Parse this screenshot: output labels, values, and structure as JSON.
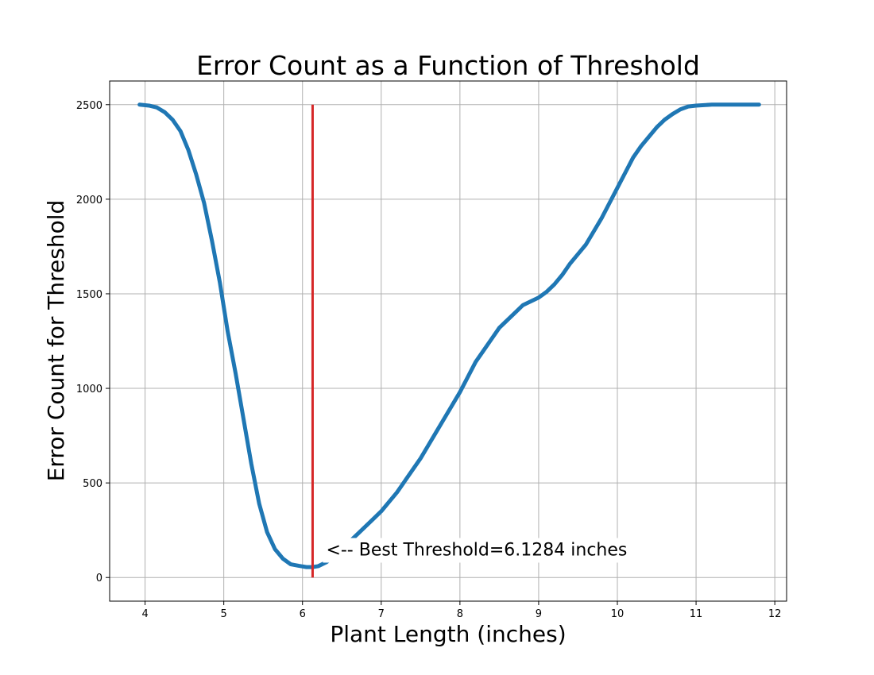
{
  "chart_data": {
    "type": "line",
    "title": "Error Count as a Function of Threshold",
    "xlabel": "Plant Length (inches)",
    "ylabel": "Error Count for Threshold",
    "xlim": [
      3.55,
      12.15
    ],
    "ylim": [
      -125,
      2625
    ],
    "grid": true,
    "x_ticks": [
      4,
      5,
      6,
      7,
      8,
      9,
      10,
      11,
      12
    ],
    "y_ticks": [
      0,
      500,
      1000,
      1500,
      2000,
      2500
    ],
    "series": [
      {
        "name": "Error Count",
        "color": "#1f77b4",
        "x": [
          3.93,
          4.05,
          4.15,
          4.25,
          4.35,
          4.45,
          4.55,
          4.65,
          4.75,
          4.85,
          4.95,
          5.05,
          5.15,
          5.25,
          5.35,
          5.45,
          5.55,
          5.65,
          5.75,
          5.85,
          5.95,
          6.05,
          6.1284,
          6.2,
          6.3,
          6.4,
          6.5,
          6.6,
          6.7,
          6.8,
          6.9,
          7.0,
          7.1,
          7.2,
          7.3,
          7.4,
          7.5,
          7.6,
          7.7,
          7.8,
          7.9,
          8.0,
          8.1,
          8.2,
          8.3,
          8.4,
          8.5,
          8.6,
          8.7,
          8.8,
          8.9,
          9.0,
          9.1,
          9.2,
          9.3,
          9.4,
          9.5,
          9.6,
          9.7,
          9.8,
          9.9,
          10.0,
          10.1,
          10.2,
          10.3,
          10.4,
          10.5,
          10.6,
          10.7,
          10.8,
          10.9,
          11.0,
          11.2,
          11.4,
          11.6,
          11.8
        ],
        "values": [
          2500,
          2495,
          2485,
          2460,
          2420,
          2360,
          2260,
          2130,
          1980,
          1780,
          1560,
          1300,
          1080,
          840,
          600,
          390,
          240,
          150,
          100,
          70,
          62,
          55,
          55,
          60,
          80,
          110,
          150,
          190,
          230,
          270,
          310,
          350,
          400,
          450,
          510,
          570,
          630,
          700,
          770,
          840,
          910,
          980,
          1060,
          1140,
          1200,
          1260,
          1320,
          1360,
          1400,
          1440,
          1460,
          1480,
          1510,
          1550,
          1600,
          1660,
          1710,
          1760,
          1830,
          1900,
          1980,
          2060,
          2140,
          2220,
          2280,
          2330,
          2380,
          2420,
          2450,
          2475,
          2490,
          2495,
          2500,
          2500,
          2500,
          2500
        ]
      }
    ],
    "vline": {
      "x": 6.1284,
      "ymin": 0,
      "ymax": 2500,
      "color": "#d62728"
    },
    "annotation": {
      "text": "<-- Best Threshold=6.1284 inches",
      "x": 6.3,
      "y": 150
    }
  }
}
